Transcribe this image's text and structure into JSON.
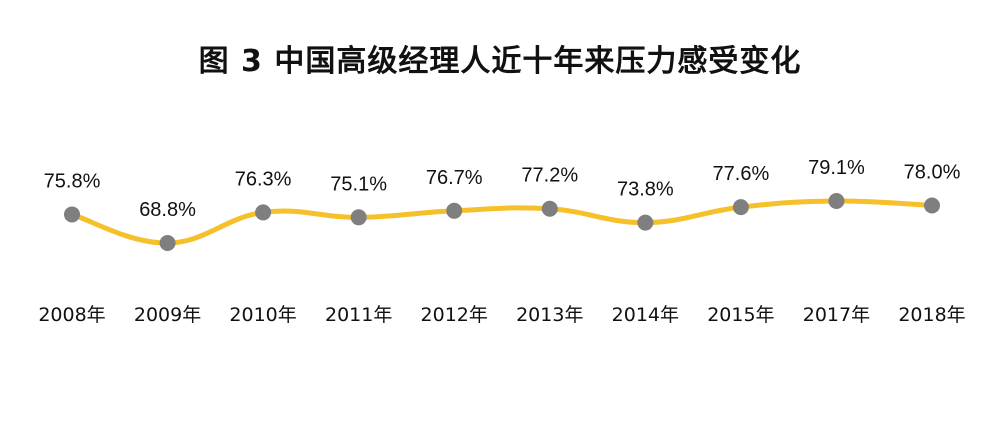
{
  "chart_data": {
    "type": "line",
    "title": "图 3  中国高级经理人近十年来压力感受变化",
    "categories": [
      "2008年",
      "2009年",
      "2010年",
      "2011年",
      "2012年",
      "2013年",
      "2014年",
      "2015年",
      "2017年",
      "2018年"
    ],
    "series": [
      {
        "values": [
          75.8,
          68.8,
          76.3,
          75.1,
          76.7,
          77.2,
          73.8,
          77.6,
          79.1,
          78.0
        ],
        "labels": [
          "75.8%",
          "68.8%",
          "76.3%",
          "75.1%",
          "76.7%",
          "77.2%",
          "73.8%",
          "77.6%",
          "79.1%",
          "78.0%"
        ]
      }
    ],
    "xlabel": "",
    "ylabel": "",
    "ylim": [
      55,
      90
    ],
    "grid": false,
    "legend": "none",
    "colors": {
      "line": "#F5C02A",
      "marker": "#7F7F7F",
      "text": "#111111"
    }
  }
}
